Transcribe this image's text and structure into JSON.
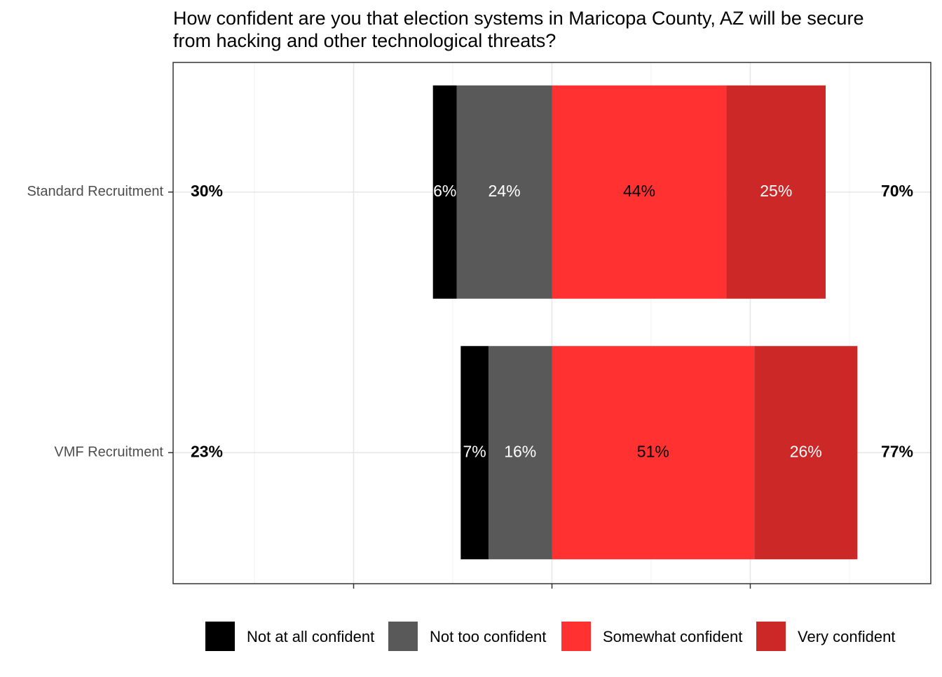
{
  "chart_data": {
    "type": "diverging_bar",
    "title": [
      "How confident are you that election systems in Maricopa County, AZ will be secure",
      "from hacking and other technological threats?"
    ],
    "categories": [
      "Standard Recruitment",
      "VMF Recruitment"
    ],
    "series": [
      {
        "name": "Not at all confident",
        "color": "#000000",
        "label_color": "#ffffff",
        "values": [
          -6,
          -7
        ],
        "value_labels": [
          "6%",
          "7%"
        ]
      },
      {
        "name": "Not too confident",
        "color": "#595959",
        "label_color": "#ffffff",
        "values": [
          -24,
          -16
        ],
        "value_labels": [
          "24%",
          "16%"
        ]
      },
      {
        "name": "Somewhat confident",
        "color": "#ff3131",
        "label_color": "#000000",
        "values": [
          44,
          51
        ],
        "value_labels": [
          "44%",
          "51%"
        ]
      },
      {
        "name": "Very confident",
        "color": "#cc2828",
        "label_color": "#ffffff",
        "values": [
          25,
          26
        ],
        "value_labels": [
          "25%",
          "26%"
        ]
      }
    ],
    "net_negative": {
      "values": [
        30,
        23
      ],
      "value_labels": [
        "30%",
        "23%"
      ]
    },
    "net_positive": {
      "values": [
        70,
        77
      ],
      "value_labels": [
        "70%",
        "77%"
      ]
    },
    "xlim": [
      -95.5,
      95.5
    ],
    "xticks": [
      -50,
      0,
      50
    ],
    "xminor": [
      -75,
      -25,
      25,
      75
    ],
    "grid": true,
    "legend": "bottom"
  }
}
